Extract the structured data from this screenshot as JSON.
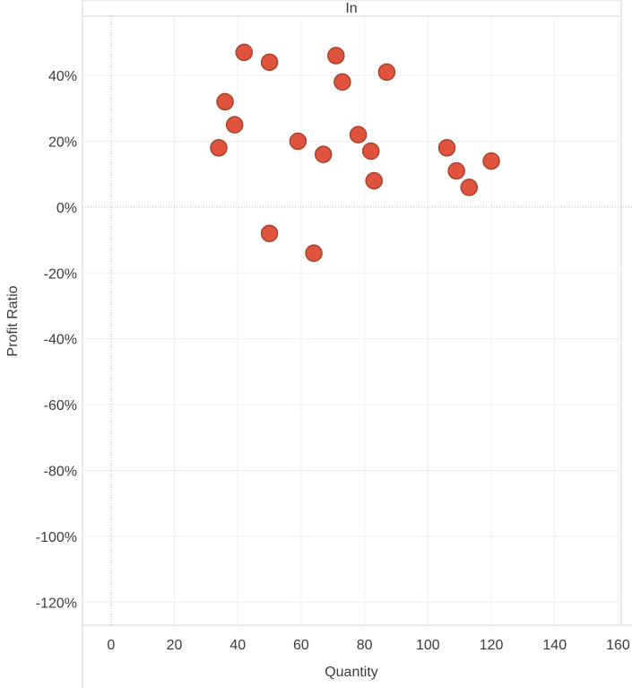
{
  "chart_data": {
    "type": "scatter",
    "panel_label": "In",
    "xlabel": "Quantity",
    "ylabel": "Profit Ratio",
    "xlim": [
      -9,
      161
    ],
    "ylim": [
      -127,
      58
    ],
    "x_ticks": [
      0,
      20,
      40,
      60,
      80,
      100,
      120,
      140,
      160
    ],
    "y_ticks": [
      40,
      20,
      0,
      -20,
      -40,
      -60,
      -80,
      -100,
      -120
    ],
    "y_tick_labels": [
      "40%",
      "20%",
      "0%",
      "-20%",
      "-40%",
      "-60%",
      "-80%",
      "-100%",
      "-120%"
    ],
    "grid": true,
    "marker_color": "#e0533d",
    "marker_edge": "#a8412e",
    "points": [
      {
        "x": 34,
        "y": 18
      },
      {
        "x": 36,
        "y": 32
      },
      {
        "x": 39,
        "y": 25
      },
      {
        "x": 42,
        "y": 47
      },
      {
        "x": 50,
        "y": 44
      },
      {
        "x": 50,
        "y": -8
      },
      {
        "x": 59,
        "y": 20
      },
      {
        "x": 64,
        "y": -14
      },
      {
        "x": 67,
        "y": 16
      },
      {
        "x": 71,
        "y": 46
      },
      {
        "x": 73,
        "y": 38
      },
      {
        "x": 78,
        "y": 22
      },
      {
        "x": 82,
        "y": 17
      },
      {
        "x": 83,
        "y": 8
      },
      {
        "x": 87,
        "y": 41
      },
      {
        "x": 106,
        "y": 18
      },
      {
        "x": 109,
        "y": 11
      },
      {
        "x": 113,
        "y": 6
      },
      {
        "x": 120,
        "y": 14
      }
    ]
  }
}
